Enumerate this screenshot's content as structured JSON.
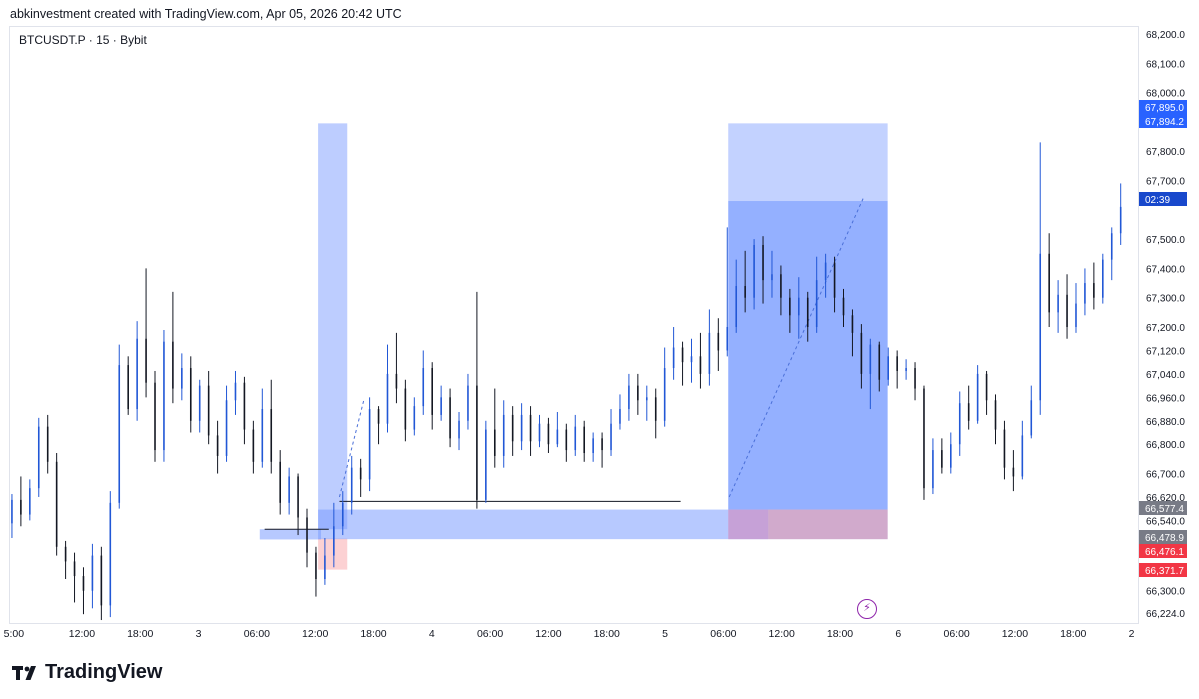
{
  "caption": "abkinvestment created with TradingView.com, Apr 05, 2026 20:42 UTC",
  "symbol_legend": "BTCUSDT.P · 15 · Bybit",
  "brand": {
    "name": "TradingView",
    "icon": "tradingview-logo-icon"
  },
  "alert_icon": {
    "icon": "lightning-bolt-icon",
    "glyph": "⚡",
    "color": "#8e24aa"
  },
  "chart_data": {
    "type": "candlestick",
    "title": "",
    "y_axis": {
      "ticks": [
        "68,200.0",
        "68,100.0",
        "68,000.0",
        "67,800.0",
        "67,700.0",
        "67,500.0",
        "67,400.0",
        "67,300.0",
        "67,200.0",
        "67,120.0",
        "67,040.0",
        "66,960.0",
        "66,880.0",
        "66,800.0",
        "66,700.0",
        "66,620.0",
        "66,540.0",
        "66,300.0",
        "66,224.0"
      ],
      "tick_values": [
        68200,
        68100,
        68000,
        67800,
        67700,
        67500,
        67400,
        67300,
        67200,
        67120,
        67040,
        66960,
        66880,
        66800,
        66700,
        66620,
        66540,
        66300,
        66224
      ],
      "anchor_values": [
        68200,
        66224
      ]
    },
    "x_axis": {
      "ticks": [
        {
          "label": "5:00",
          "t": -2
        },
        {
          "label": "12:00",
          "t": 5
        },
        {
          "label": "18:00",
          "t": 11
        },
        {
          "label": "3",
          "t": 17
        },
        {
          "label": "06:00",
          "t": 23
        },
        {
          "label": "12:00",
          "t": 29
        },
        {
          "label": "18:00",
          "t": 35
        },
        {
          "label": "4",
          "t": 41
        },
        {
          "label": "06:00",
          "t": 47
        },
        {
          "label": "12:00",
          "t": 53
        },
        {
          "label": "18:00",
          "t": 59
        },
        {
          "label": "5",
          "t": 65
        },
        {
          "label": "06:00",
          "t": 71
        },
        {
          "label": "12:00",
          "t": 77
        },
        {
          "label": "18:00",
          "t": 83
        },
        {
          "label": "6",
          "t": 89
        },
        {
          "label": "06:00",
          "t": 95
        },
        {
          "label": "12:00",
          "t": 101
        },
        {
          "label": "18:00",
          "t": 107
        },
        {
          "label": "2",
          "t": 113
        }
      ],
      "range": [
        -2.4,
        111.5
      ]
    },
    "price_labels": [
      {
        "text": "67,895.0",
        "value": 67895.0,
        "color": "#2962ff"
      },
      {
        "text": "67,894.2",
        "value": 67894.2,
        "color": "#2962ff"
      },
      {
        "text": "02:39",
        "value": 67610.0,
        "color": "#1848cc"
      },
      {
        "text": "66,577.4",
        "value": 66577.4,
        "color": "#787b86"
      },
      {
        "text": "66,478.9",
        "value": 66478.9,
        "color": "#787b86"
      },
      {
        "text": "66,476.1",
        "value": 66476.1,
        "color": "#f23645"
      },
      {
        "text": "66,371.7",
        "value": 66371.7,
        "color": "#f23645"
      }
    ],
    "zones": [
      {
        "name": "left-target-zone",
        "t0": 29.3,
        "t1": 32.3,
        "v0": 67895,
        "v1": 66510,
        "color": "#7b9cff",
        "opacity": 0.5
      },
      {
        "name": "left-stop-zone",
        "t0": 29.3,
        "t1": 32.3,
        "v0": 66478,
        "v1": 66372,
        "color": "#f77c80",
        "opacity": 0.35
      },
      {
        "name": "left-entry-band",
        "t0": 23.3,
        "t1": 29.6,
        "v0": 66510,
        "v1": 66475,
        "color": "#7b9cff",
        "opacity": 0.55
      },
      {
        "name": "entry-band",
        "t0": 29.3,
        "t1": 71.5,
        "v0": 66577,
        "v1": 66476,
        "color": "#7b9cff",
        "opacity": 0.55
      },
      {
        "name": "right-target-zone-upper",
        "t0": 71.5,
        "t1": 87.9,
        "v0": 67895,
        "v1": 67630,
        "color": "#7b9cff",
        "opacity": 0.45
      },
      {
        "name": "right-target-zone-lower",
        "t0": 71.5,
        "t1": 87.9,
        "v0": 67630,
        "v1": 66577,
        "color": "#5b86ff",
        "opacity": 0.65
      },
      {
        "name": "right-entry-band",
        "t0": 71.5,
        "t1": 87.9,
        "v0": 66577,
        "v1": 66476,
        "color": "#7b9cff",
        "opacity": 0.55
      },
      {
        "name": "right-stop-zone",
        "t0": 75.6,
        "t1": 87.9,
        "v0": 66577,
        "v1": 66476,
        "color": "#f77c80",
        "opacity": 0.4
      },
      {
        "name": "right-overlap-zone",
        "t0": 71.5,
        "t1": 75.6,
        "v0": 66577,
        "v1": 66476,
        "color": "#c99ad0",
        "opacity": 0.85
      }
    ],
    "lines": [
      {
        "name": "level-line-1",
        "t0": 23.8,
        "t1": 30.4,
        "v": 66510,
        "color": "#131722"
      },
      {
        "name": "level-line-2",
        "t0": 31.5,
        "t1": 66.6,
        "v": 66605,
        "color": "#131722"
      }
    ],
    "dashed_lines": [
      {
        "name": "left-path-line",
        "t0": 31.5,
        "t1": 34.0,
        "v0": 66620,
        "v1": 66950
      },
      {
        "name": "right-path-line",
        "t0": 71.6,
        "t1": 85.4,
        "v0": 66620,
        "v1": 67640
      }
    ],
    "candles": [
      [
        66530,
        66610,
        66480,
        66630
      ],
      [
        66610,
        66560,
        66520,
        66690
      ],
      [
        66560,
        66650,
        66540,
        66680
      ],
      [
        66650,
        66860,
        66620,
        66890
      ],
      [
        66860,
        66740,
        66700,
        66900
      ],
      [
        66740,
        66450,
        66420,
        66770
      ],
      [
        66450,
        66400,
        66340,
        66470
      ],
      [
        66400,
        66350,
        66260,
        66430
      ],
      [
        66350,
        66300,
        66220,
        66380
      ],
      [
        66300,
        66420,
        66240,
        66460
      ],
      [
        66420,
        66250,
        66200,
        66450
      ],
      [
        66250,
        66600,
        66210,
        66640
      ],
      [
        66600,
        67070,
        66580,
        67140
      ],
      [
        67070,
        66920,
        66900,
        67100
      ],
      [
        66920,
        67160,
        66880,
        67220
      ],
      [
        67160,
        67010,
        66960,
        67400
      ],
      [
        67010,
        66780,
        66740,
        67050
      ],
      [
        66780,
        67150,
        66740,
        67190
      ],
      [
        67150,
        66990,
        66940,
        67320
      ],
      [
        66990,
        67060,
        66950,
        67110
      ],
      [
        67060,
        66880,
        66840,
        67100
      ],
      [
        66880,
        67000,
        66840,
        67020
      ],
      [
        67000,
        66830,
        66800,
        67050
      ],
      [
        66830,
        66760,
        66700,
        66880
      ],
      [
        66760,
        66950,
        66740,
        67000
      ],
      [
        66950,
        67010,
        66900,
        67050
      ],
      [
        67010,
        66850,
        66800,
        67030
      ],
      [
        66850,
        66740,
        66700,
        66880
      ],
      [
        66740,
        66920,
        66720,
        66990
      ],
      [
        66920,
        66740,
        66700,
        67020
      ],
      [
        66740,
        66600,
        66560,
        66780
      ],
      [
        66600,
        66690,
        66560,
        66720
      ],
      [
        66690,
        66550,
        66490,
        66700
      ],
      [
        66550,
        66430,
        66380,
        66580
      ],
      [
        66430,
        66340,
        66280,
        66450
      ],
      [
        66340,
        66420,
        66320,
        66480
      ],
      [
        66420,
        66520,
        66380,
        66600
      ],
      [
        66520,
        66600,
        66490,
        66640
      ],
      [
        66600,
        66720,
        66560,
        66760
      ],
      [
        66720,
        66680,
        66620,
        66750
      ],
      [
        66680,
        66920,
        66640,
        66960
      ],
      [
        66920,
        66870,
        66800,
        66930
      ],
      [
        66870,
        67040,
        66840,
        67140
      ],
      [
        67040,
        66990,
        66940,
        67180
      ],
      [
        66990,
        66850,
        66810,
        67020
      ],
      [
        66850,
        66930,
        66830,
        66960
      ],
      [
        66930,
        67060,
        66900,
        67120
      ],
      [
        67060,
        66900,
        66850,
        67080
      ],
      [
        66900,
        66960,
        66880,
        67000
      ],
      [
        66960,
        66820,
        66790,
        66990
      ],
      [
        66820,
        66880,
        66780,
        66910
      ],
      [
        66880,
        67000,
        66850,
        67040
      ],
      [
        67000,
        66610,
        66580,
        67320
      ],
      [
        66610,
        66850,
        66600,
        66880
      ],
      [
        66850,
        66760,
        66720,
        66990
      ],
      [
        66760,
        66900,
        66720,
        66950
      ],
      [
        66900,
        66810,
        66760,
        66930
      ],
      [
        66810,
        66900,
        66780,
        66940
      ],
      [
        66900,
        66810,
        66760,
        66930
      ],
      [
        66810,
        66870,
        66790,
        66900
      ],
      [
        66870,
        66800,
        66770,
        66890
      ],
      [
        66800,
        66850,
        66790,
        66910
      ],
      [
        66850,
        66780,
        66740,
        66870
      ],
      [
        66780,
        66860,
        66760,
        66900
      ],
      [
        66860,
        66770,
        66740,
        66880
      ],
      [
        66770,
        66820,
        66740,
        66840
      ],
      [
        66820,
        66780,
        66720,
        66840
      ],
      [
        66780,
        66870,
        66760,
        66920
      ],
      [
        66870,
        66920,
        66850,
        66970
      ],
      [
        66920,
        67000,
        66880,
        67040
      ],
      [
        67000,
        66950,
        66900,
        67040
      ],
      [
        66950,
        66960,
        66880,
        67000
      ],
      [
        66960,
        66880,
        66820,
        66990
      ],
      [
        66880,
        67060,
        66860,
        67130
      ],
      [
        67060,
        67130,
        67020,
        67200
      ],
      [
        67130,
        67080,
        67000,
        67150
      ],
      [
        67080,
        67100,
        67010,
        67160
      ],
      [
        67100,
        67040,
        66990,
        67180
      ],
      [
        67040,
        67180,
        67000,
        67260
      ],
      [
        67180,
        67120,
        67050,
        67230
      ],
      [
        67120,
        67200,
        67100,
        67540
      ],
      [
        67200,
        67340,
        67180,
        67430
      ],
      [
        67340,
        67300,
        67250,
        67460
      ],
      [
        67300,
        67480,
        67260,
        67500
      ],
      [
        67480,
        67360,
        67280,
        67510
      ],
      [
        67360,
        67380,
        67300,
        67460
      ],
      [
        67380,
        67300,
        67240,
        67410
      ],
      [
        67300,
        67240,
        67180,
        67330
      ],
      [
        67240,
        67300,
        67160,
        67370
      ],
      [
        67300,
        67200,
        67150,
        67320
      ],
      [
        67200,
        67360,
        67180,
        67440
      ],
      [
        67360,
        67420,
        67300,
        67450
      ],
      [
        67420,
        67300,
        67250,
        67440
      ],
      [
        67300,
        67240,
        67200,
        67330
      ],
      [
        67240,
        67180,
        67100,
        67260
      ],
      [
        67180,
        67040,
        66990,
        67210
      ],
      [
        67040,
        67140,
        66920,
        67160
      ],
      [
        67140,
        67020,
        66980,
        67150
      ],
      [
        67020,
        67100,
        67000,
        67130
      ],
      [
        67100,
        67050,
        66990,
        67120
      ],
      [
        67050,
        67060,
        67020,
        67090
      ],
      [
        67060,
        66990,
        66950,
        67080
      ],
      [
        66990,
        66650,
        66610,
        67000
      ],
      [
        66650,
        66780,
        66630,
        66820
      ],
      [
        66780,
        66720,
        66700,
        66820
      ],
      [
        66720,
        66800,
        66700,
        66840
      ],
      [
        66800,
        66940,
        66760,
        66980
      ],
      [
        66940,
        66880,
        66850,
        67000
      ],
      [
        66880,
        67040,
        66870,
        67070
      ],
      [
        67040,
        66950,
        66900,
        67050
      ],
      [
        66950,
        66850,
        66800,
        66970
      ],
      [
        66850,
        66720,
        66680,
        66880
      ],
      [
        66720,
        66690,
        66640,
        66780
      ],
      [
        66690,
        66830,
        66680,
        66880
      ],
      [
        66830,
        66950,
        66820,
        67000
      ],
      [
        66950,
        67450,
        66900,
        67830
      ],
      [
        67450,
        67250,
        67200,
        67520
      ],
      [
        67250,
        67310,
        67180,
        67360
      ],
      [
        67310,
        67200,
        67160,
        67380
      ],
      [
        67200,
        67280,
        67180,
        67350
      ],
      [
        67280,
        67350,
        67240,
        67400
      ],
      [
        67350,
        67300,
        67260,
        67420
      ],
      [
        67300,
        67430,
        67280,
        67450
      ],
      [
        67430,
        67520,
        67360,
        67540
      ],
      [
        67520,
        67610,
        67480,
        67690
      ]
    ]
  }
}
